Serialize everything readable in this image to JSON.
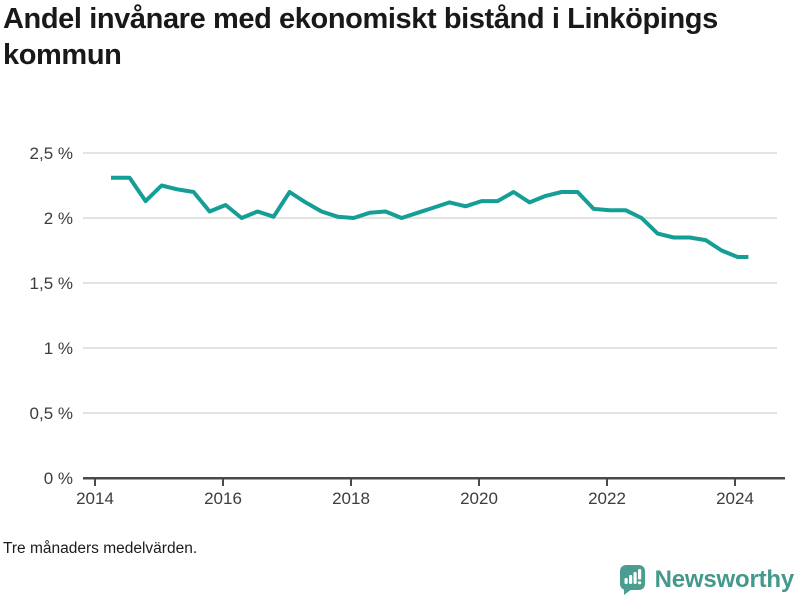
{
  "header": {
    "title": "Andel invånare med ekonomiskt bistånd i Linköpings kommun"
  },
  "footer": {
    "note": "Tre månaders medelvärden.",
    "brand": "Newsworthy"
  },
  "colors": {
    "line": "#159e96",
    "grid": "#e3e3e3",
    "axis": "#4a4a4a",
    "tick_label": "#3d3d3d",
    "title": "#191919",
    "brand": "#44998c"
  },
  "chart_data": {
    "type": "line",
    "title": "Andel invånare med ekonomiskt bistånd i Linköpings kommun",
    "note": "Tre månaders medelvärden.",
    "xlabel": "",
    "ylabel": "",
    "unit": "%",
    "xlim": [
      2013.8,
      2024.75
    ],
    "ylim": [
      0,
      2.5
    ],
    "grid": "horizontal",
    "legend": "none",
    "y_ticks": [
      {
        "value": 0,
        "label": "0 %"
      },
      {
        "value": 0.5,
        "label": "0,5 %"
      },
      {
        "value": 1,
        "label": "1 %"
      },
      {
        "value": 1.5,
        "label": "1,5 %"
      },
      {
        "value": 2,
        "label": "2 %"
      },
      {
        "value": 2.5,
        "label": "2,5 %"
      }
    ],
    "x_ticks": [
      {
        "value": 2014,
        "label": "2014"
      },
      {
        "value": 2016,
        "label": "2016"
      },
      {
        "value": 2018,
        "label": "2018"
      },
      {
        "value": 2020,
        "label": "2020"
      },
      {
        "value": 2022,
        "label": "2022"
      },
      {
        "value": 2024,
        "label": "2024"
      }
    ],
    "series": [
      {
        "name": "Andel invånare med ekonomiskt bistånd",
        "color": "#159e96",
        "x": [
          2014.25,
          2014.54,
          2014.79,
          2015.04,
          2015.29,
          2015.54,
          2015.79,
          2016.04,
          2016.29,
          2016.54,
          2016.79,
          2017.04,
          2017.29,
          2017.54,
          2017.79,
          2018.04,
          2018.29,
          2018.54,
          2018.79,
          2019.04,
          2019.29,
          2019.54,
          2019.79,
          2020.04,
          2020.29,
          2020.54,
          2020.79,
          2021.04,
          2021.29,
          2021.54,
          2021.79,
          2022.04,
          2022.29,
          2022.54,
          2022.79,
          2023.04,
          2023.29,
          2023.54,
          2023.79,
          2024.04,
          2024.21
        ],
        "values": [
          2.31,
          2.31,
          2.13,
          2.25,
          2.22,
          2.2,
          2.05,
          2.1,
          2.0,
          2.05,
          2.01,
          2.2,
          2.12,
          2.05,
          2.01,
          2.0,
          2.04,
          2.05,
          2.0,
          2.04,
          2.08,
          2.12,
          2.09,
          2.13,
          2.13,
          2.2,
          2.12,
          2.17,
          2.2,
          2.2,
          2.07,
          2.06,
          2.06,
          2.0,
          1.88,
          1.85,
          1.85,
          1.83,
          1.75,
          1.7,
          1.7
        ]
      }
    ]
  }
}
